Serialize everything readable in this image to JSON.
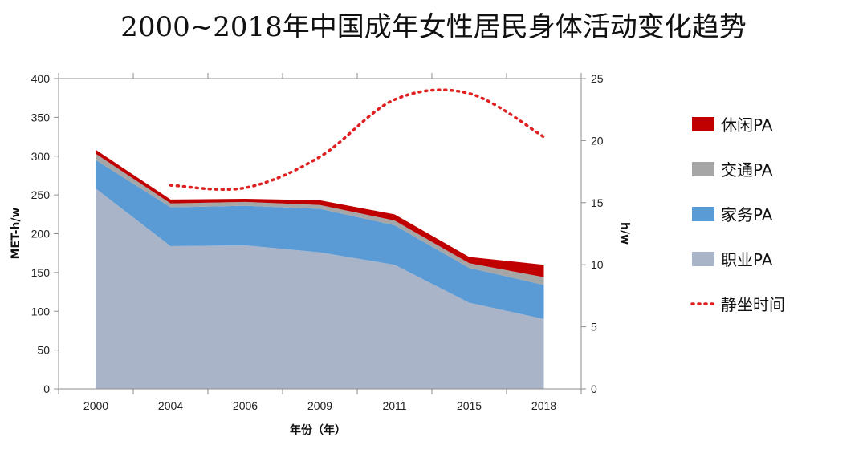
{
  "chart_data": {
    "type": "area",
    "title": "2000~2018年中国成年女性居民身体活动变化趋势",
    "xlabel": "年份（年）",
    "ylabel": "MET-h/w",
    "y2label": "h/w",
    "categories": [
      "2000",
      "2004",
      "2006",
      "2009",
      "2011",
      "2015",
      "2018"
    ],
    "ylim": [
      0,
      400
    ],
    "yticks": [
      0,
      50,
      100,
      150,
      200,
      250,
      300,
      350,
      400
    ],
    "y2lim": [
      0,
      25
    ],
    "y2ticks": [
      0,
      5,
      10,
      15,
      20,
      25
    ],
    "stacked": true,
    "series": [
      {
        "name": "职业PA",
        "color": "#aab4c8",
        "values": [
          258,
          184,
          185,
          176,
          160,
          111,
          90
        ]
      },
      {
        "name": "家务PA",
        "color": "#5b9bd5",
        "values": [
          37,
          50,
          51,
          56,
          51,
          45,
          44
        ]
      },
      {
        "name": "交通PA",
        "color": "#a6a6a6",
        "values": [
          8,
          5,
          5,
          5,
          6,
          6,
          10
        ]
      },
      {
        "name": "休闲PA",
        "color": "#c00000",
        "values": [
          5,
          5,
          4,
          6,
          8,
          8,
          16
        ]
      }
    ],
    "line_series": {
      "name": "静坐时间",
      "color": "#e02020",
      "style": "dotted",
      "axis": "right",
      "x_start_index": 1,
      "values": [
        16.4,
        16.2,
        18.7,
        23.3,
        23.8,
        20.3
      ]
    },
    "legend_position": "right",
    "grid": false
  }
}
